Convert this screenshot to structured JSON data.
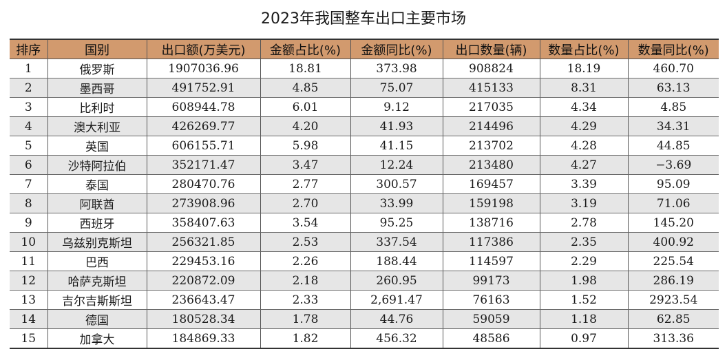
{
  "title": "2023年我国整车出口主要市场",
  "headers": [
    "排序",
    "国别",
    "出口额(万美元)",
    "金额占比(%)",
    "金额同比(%)",
    "出口数量(辆)",
    "数量占比(%)",
    "数量同比(%)"
  ],
  "rows": [
    [
      "1",
      "俄罗斯",
      "1907036.96",
      "18.81",
      "373.98",
      "908824",
      "18.19",
      "460.70"
    ],
    [
      "2",
      "墨西哥",
      "491752.91",
      "4.85",
      "75.07",
      "415133",
      "8.31",
      "63.13"
    ],
    [
      "3",
      "比利时",
      "608944.78",
      "6.01",
      "9.12",
      "217035",
      "4.34",
      "4.85"
    ],
    [
      "4",
      "澳大利亚",
      "426269.77",
      "4.20",
      "41.93",
      "214496",
      "4.29",
      "34.31"
    ],
    [
      "5",
      "英国",
      "606155.71",
      "5.98",
      "41.15",
      "213702",
      "4.28",
      "44.85"
    ],
    [
      "6",
      "沙特阿拉伯",
      "352171.47",
      "3.47",
      "12.24",
      "213480",
      "4.27",
      "−3.69"
    ],
    [
      "7",
      "泰国",
      "280470.76",
      "2.77",
      "300.57",
      "169457",
      "3.39",
      "95.09"
    ],
    [
      "8",
      "阿联酋",
      "273908.96",
      "2.70",
      "33.99",
      "159198",
      "3.19",
      "71.06"
    ],
    [
      "9",
      "西班牙",
      "358407.63",
      "3.54",
      "95.25",
      "138716",
      "2.78",
      "145.20"
    ],
    [
      "10",
      "乌兹别克斯坦",
      "256321.85",
      "2.53",
      "337.54",
      "117386",
      "2.35",
      "400.92"
    ],
    [
      "11",
      "巴西",
      "229453.16",
      "2.26",
      "188.44",
      "114597",
      "2.29",
      "225.54"
    ],
    [
      "12",
      "哈萨克斯坦",
      "220872.09",
      "2.18",
      "260.95",
      "99173",
      "1.98",
      "286.19"
    ],
    [
      "13",
      "吉尔吉斯斯坦",
      "236643.47",
      "2.33",
      "2,691.47",
      "76163",
      "1.52",
      "2923.54"
    ],
    [
      "14",
      "德国",
      "180528.34",
      "1.78",
      "44.76",
      "59059",
      "1.18",
      "62.85"
    ],
    [
      "15",
      "加拿大",
      "184869.33",
      "1.82",
      "456.32",
      "48586",
      "0.97",
      "313.36"
    ]
  ]
}
